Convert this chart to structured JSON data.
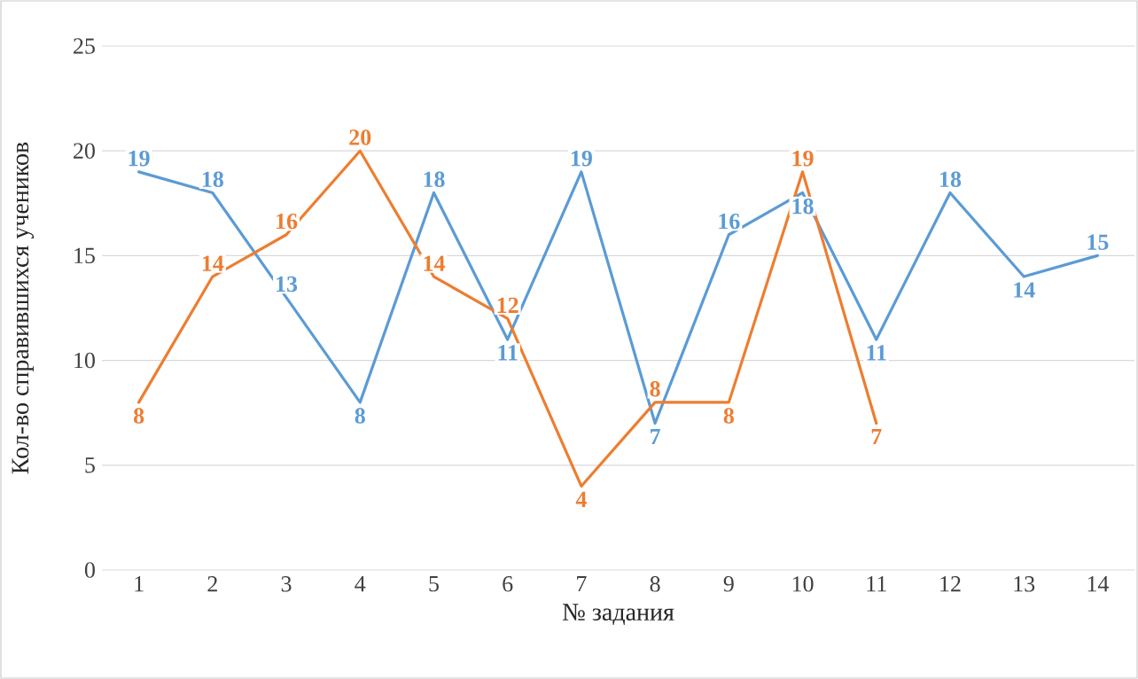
{
  "chart_data": {
    "type": "line",
    "xlabel": "№ задания",
    "ylabel": "Кол-во справившихся учеников",
    "categories": [
      "1",
      "2",
      "3",
      "4",
      "5",
      "6",
      "7",
      "8",
      "9",
      "10",
      "11",
      "12",
      "13",
      "14"
    ],
    "series": [
      {
        "color": "#5b9bd5",
        "values": [
          19,
          18,
          13,
          8,
          18,
          11,
          19,
          7,
          16,
          18,
          11,
          18,
          14,
          15
        ]
      },
      {
        "color": "#ed7d31",
        "values": [
          8,
          14,
          16,
          20,
          14,
          12,
          4,
          8,
          8,
          19,
          7,
          null,
          null,
          null
        ]
      }
    ],
    "ylim": [
      0,
      25
    ],
    "yticks": [
      0,
      5,
      10,
      15,
      20,
      25
    ],
    "grid": "y",
    "legend": false,
    "data_labels": true,
    "marker": "none",
    "line_style": "solid"
  }
}
